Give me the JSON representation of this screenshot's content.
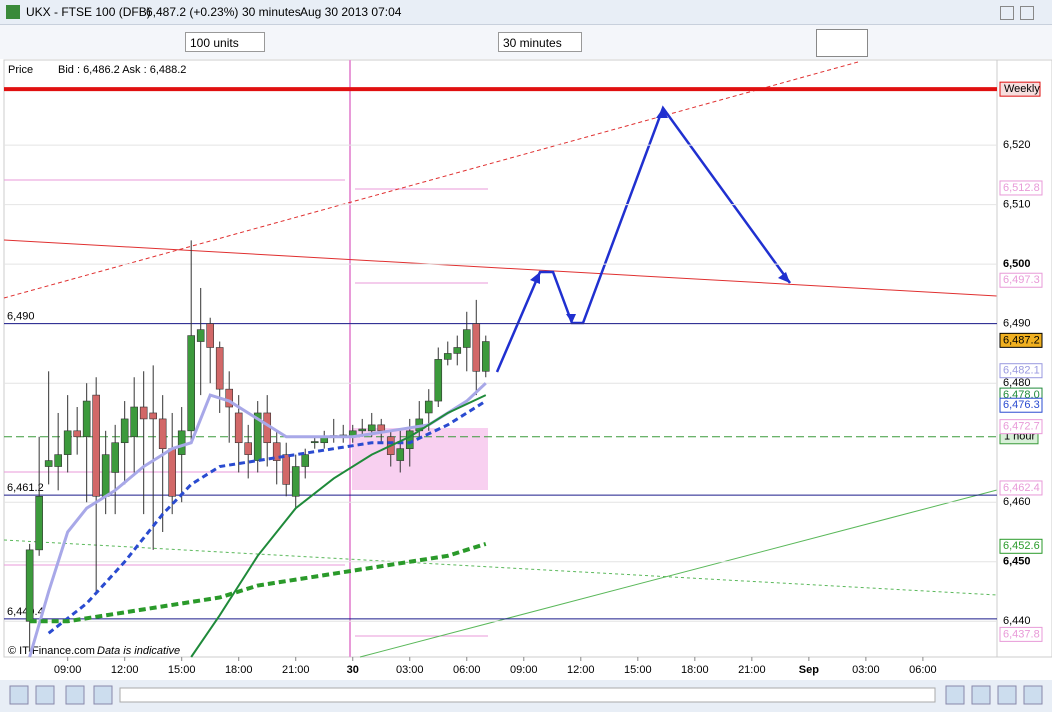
{
  "window": {
    "symbol": "UKX - FTSE 100 (DFB)",
    "change": "6,487.2 (+0.23%)",
    "interval": "30 minutes",
    "datetime": "Aug 30 2013 07:04"
  },
  "toolbar": {
    "size": "100 units",
    "timeframe": "30 minutes"
  },
  "info": {
    "price": "Price",
    "quote": "Bid : 6,486.2 Ask : 6,488.2"
  },
  "footer": {
    "source": "© IT-Finance.com",
    "note": "Data is indicative"
  },
  "chart_data": {
    "type": "candlestick",
    "xlim": [
      -2.7,
      101.8
    ],
    "ylim": [
      6434,
      6534.3
    ],
    "xticks": [
      {
        "value": 4,
        "label": "09:00"
      },
      {
        "value": 10,
        "label": "12:00"
      },
      {
        "value": 16,
        "label": "15:00"
      },
      {
        "value": 22,
        "label": "18:00"
      },
      {
        "value": 28,
        "label": "21:00"
      },
      {
        "value": 34,
        "label": "30"
      },
      {
        "value": 40,
        "label": "03:00"
      },
      {
        "value": 46,
        "label": "06:00"
      },
      {
        "value": 52,
        "label": "09:00"
      },
      {
        "value": 58,
        "label": "12:00"
      },
      {
        "value": 64,
        "label": "15:00"
      },
      {
        "value": 70,
        "label": "18:00"
      },
      {
        "value": 76,
        "label": "21:00"
      },
      {
        "value": 82,
        "label": "Sep"
      },
      {
        "value": 88,
        "label": "03:00"
      },
      {
        "value": 94,
        "label": "06:00"
      }
    ],
    "yticks": [
      {
        "value": 6520,
        "label": "6,520"
      },
      {
        "value": 6510,
        "label": "6,510"
      },
      {
        "value": 6500,
        "label": "6,500"
      },
      {
        "value": 6490,
        "label": "6,490"
      },
      {
        "value": 6480,
        "label": "6,480"
      },
      {
        "value": 6460,
        "label": "6,460"
      },
      {
        "value": 6450,
        "label": "6,450"
      },
      {
        "value": 6440,
        "label": "6,440"
      }
    ],
    "up_color": "#3c9a3c",
    "down_color": "#d26868",
    "candles": [
      {
        "open": 6440,
        "high": 6453,
        "low": 6435,
        "close": 6452
      },
      {
        "open": 6452,
        "high": 6471,
        "low": 6451,
        "close": 6461
      },
      {
        "open": 6466,
        "high": 6482,
        "low": 6463,
        "close": 6467
      },
      {
        "open": 6466,
        "high": 6475,
        "low": 6462,
        "close": 6468
      },
      {
        "open": 6468,
        "high": 6478,
        "low": 6465,
        "close": 6472
      },
      {
        "open": 6472,
        "high": 6476,
        "low": 6468,
        "close": 6471
      },
      {
        "open": 6471,
        "high": 6480,
        "low": 6460,
        "close": 6477
      },
      {
        "open": 6478,
        "high": 6481,
        "low": 6445,
        "close": 6461
      },
      {
        "open": 6461,
        "high": 6472,
        "low": 6458,
        "close": 6468
      },
      {
        "open": 6465,
        "high": 6473,
        "low": 6458,
        "close": 6470
      },
      {
        "open": 6470,
        "high": 6477,
        "low": 6463,
        "close": 6474
      },
      {
        "open": 6471,
        "high": 6481,
        "low": 6465,
        "close": 6476
      },
      {
        "open": 6476,
        "high": 6482,
        "low": 6458,
        "close": 6474
      },
      {
        "open": 6475,
        "high": 6483,
        "low": 6452,
        "close": 6474
      },
      {
        "open": 6474,
        "high": 6478,
        "low": 6455,
        "close": 6469
      },
      {
        "open": 6469,
        "high": 6475,
        "low": 6458,
        "close": 6461
      },
      {
        "open": 6468,
        "high": 6476,
        "low": 6460,
        "close": 6472
      },
      {
        "open": 6472,
        "high": 6504,
        "low": 6470,
        "close": 6488
      },
      {
        "open": 6487,
        "high": 6496,
        "low": 6478,
        "close": 6489
      },
      {
        "open": 6490,
        "high": 6491,
        "low": 6480,
        "close": 6486
      },
      {
        "open": 6486,
        "high": 6487,
        "low": 6475,
        "close": 6479
      },
      {
        "open": 6479,
        "high": 6482,
        "low": 6470,
        "close": 6476
      },
      {
        "open": 6475,
        "high": 6478,
        "low": 6465,
        "close": 6470
      },
      {
        "open": 6470,
        "high": 6473,
        "low": 6464,
        "close": 6468
      },
      {
        "open": 6467,
        "high": 6477,
        "low": 6465,
        "close": 6475
      },
      {
        "open": 6475,
        "high": 6478,
        "low": 6466,
        "close": 6470
      },
      {
        "open": 6470,
        "high": 6472,
        "low": 6463,
        "close": 6467
      },
      {
        "open": 6468,
        "high": 6470,
        "low": 6461,
        "close": 6463
      },
      {
        "open": 6461,
        "high": 6468,
        "low": 6459,
        "close": 6466
      },
      {
        "open": 6466,
        "high": 6469,
        "low": 6464,
        "close": 6468
      },
      {
        "open": 6470,
        "high": 6471,
        "low": 6469,
        "close": 6470.2
      },
      {
        "open": 6470,
        "high": 6472,
        "low": 6469,
        "close": 6471
      },
      {
        "open": 6471,
        "high": 6474,
        "low": 6470,
        "close": 6471.2
      },
      {
        "open": 6471,
        "high": 6473,
        "low": 6470,
        "close": 6471.3
      },
      {
        "open": 6471,
        "high": 6473,
        "low": 6470,
        "close": 6472
      },
      {
        "open": 6472,
        "high": 6474,
        "low": 6471,
        "close": 6472.3
      },
      {
        "open": 6472,
        "high": 6475,
        "low": 6471,
        "close": 6473
      },
      {
        "open": 6473,
        "high": 6474,
        "low": 6470,
        "close": 6472
      },
      {
        "open": 6471,
        "high": 6472,
        "low": 6466,
        "close": 6468
      },
      {
        "open": 6467,
        "high": 6472,
        "low": 6465,
        "close": 6469
      },
      {
        "open": 6469,
        "high": 6474,
        "low": 6466,
        "close": 6472
      },
      {
        "open": 6472,
        "high": 6477,
        "low": 6471,
        "close": 6474
      },
      {
        "open": 6475,
        "high": 6479,
        "low": 6472,
        "close": 6477
      },
      {
        "open": 6477,
        "high": 6486,
        "low": 6476,
        "close": 6484
      },
      {
        "open": 6484,
        "high": 6487,
        "low": 6483,
        "close": 6485
      },
      {
        "open": 6485,
        "high": 6488,
        "low": 6483,
        "close": 6486
      },
      {
        "open": 6486,
        "high": 6492,
        "low": 6482,
        "close": 6489
      },
      {
        "open": 6490,
        "high": 6494,
        "low": 6478,
        "close": 6482
      },
      {
        "open": 6482,
        "high": 6488,
        "low": 6481,
        "close": 6487
      }
    ],
    "series": [
      {
        "color": "#a8a8e8",
        "width": 3,
        "dash": "",
        "x": [
          0,
          2,
          4,
          6,
          9,
          12,
          15,
          17,
          19,
          21,
          24,
          27,
          30,
          34,
          38,
          42,
          46,
          48
        ],
        "values": [
          6434,
          6445,
          6455,
          6459,
          6462,
          6466,
          6469,
          6470,
          6478,
          6477,
          6474,
          6471,
          6471,
          6471,
          6472,
          6473,
          6477,
          6480
        ]
      },
      {
        "color": "#2a4bd0",
        "width": 3,
        "dash": "6 4",
        "x": [
          2,
          6,
          10,
          14,
          17,
          20,
          24,
          28,
          32,
          36,
          40,
          44,
          48
        ],
        "values": [
          6438,
          6443,
          6450,
          6458,
          6463,
          6466,
          6467,
          6468,
          6469,
          6470,
          6470,
          6473,
          6477
        ]
      },
      {
        "color": "#1f8a3a",
        "width": 2,
        "dash": "",
        "x": [
          17,
          20,
          24,
          28,
          32,
          36,
          40,
          44,
          48
        ],
        "values": [
          6434,
          6441,
          6451,
          6459,
          6464,
          6468,
          6471,
          6475,
          6478
        ]
      },
      {
        "color": "#2a9a2a",
        "width": 4,
        "dash": "7 4",
        "x": [
          0,
          4,
          8,
          12,
          16,
          20,
          24,
          28,
          32,
          36,
          40,
          44,
          48
        ],
        "values": [
          6440,
          6440,
          6441,
          6442,
          6443,
          6444,
          6446,
          6447,
          6448,
          6449,
          6450,
          6451,
          6453
        ]
      }
    ],
    "levels": [
      {
        "value": 6490,
        "label": "6,490",
        "color": "#1a1a8a"
      },
      {
        "value": 6461.2,
        "label": "6,461.2",
        "color": "#1a1a8a"
      },
      {
        "value": 6440.4,
        "label": "6,440.4",
        "color": "#1a1a8a"
      }
    ],
    "weekly": {
      "value": 6529.4,
      "label": "Weekly",
      "color": "#e01010"
    },
    "hourly": {
      "value": 6471,
      "label": "1 hour",
      "color": "#3a9a3a"
    },
    "price_tags": [
      {
        "value": 6512.8,
        "label": "6,512.8",
        "color": "#e89ad8",
        "bg": "#fff"
      },
      {
        "value": 6497.3,
        "label": "6,497.3",
        "color": "#e89ad8",
        "bg": "#fff"
      },
      {
        "value": 6487.2,
        "label": "6,487.2",
        "color": "#000",
        "bg": "#f0b020"
      },
      {
        "value": 6482.1,
        "label": "6,482.1",
        "color": "#9a9ae0",
        "bg": "#fff"
      },
      {
        "value": 6478.0,
        "label": "6,478.0",
        "color": "#1f8a3a",
        "bg": "#fff"
      },
      {
        "value": 6476.3,
        "label": "6,476.3",
        "color": "#2a4bd0",
        "bg": "#fff"
      },
      {
        "value": 6472.7,
        "label": "6,472.7",
        "color": "#e89ad8",
        "bg": "#fff"
      },
      {
        "value": 6462.4,
        "label": "6,462.4",
        "color": "#e89ad8",
        "bg": "#fff"
      },
      {
        "value": 6452.6,
        "label": "6,452.6",
        "color": "#2a9a2a",
        "bg": "#fff"
      },
      {
        "value": 6437.8,
        "label": "6,437.8",
        "color": "#e89ad8",
        "bg": "#fff"
      }
    ]
  }
}
